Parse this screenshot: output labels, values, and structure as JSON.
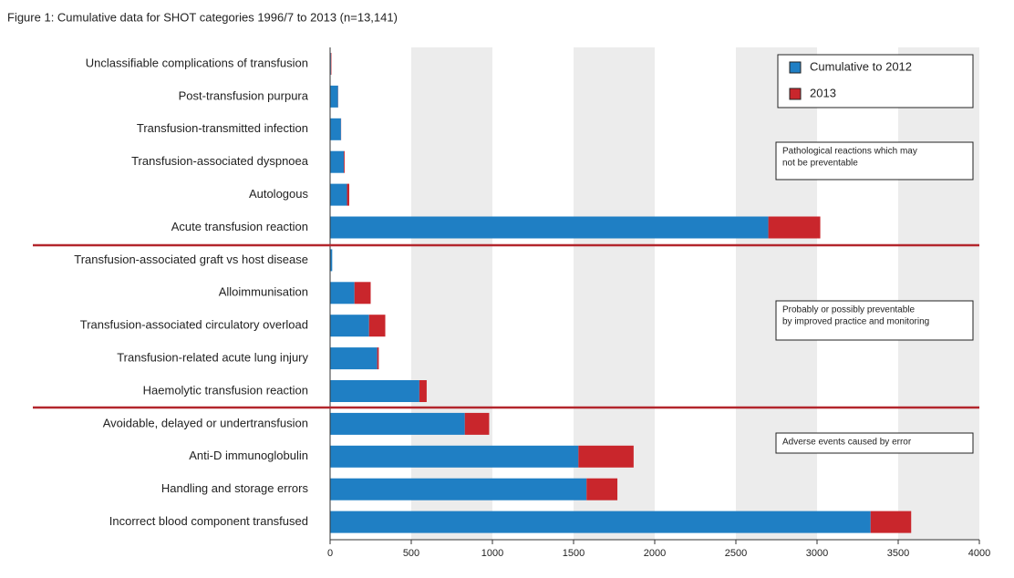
{
  "chart_data": {
    "type": "stacked_barh",
    "title": "Figure 1: Cumulative data for SHOT categories 1996/7 to 2013 (n=13,141)",
    "categories": [
      "Unclassifiable complications of transfusion",
      "Post-transfusion purpura",
      "Transfusion-transmitted infection",
      "Transfusion-associated dyspnoea",
      "Autologous",
      "Acute transfusion reaction",
      "Transfusion-associated graft vs host disease",
      "Alloimmunisation",
      "Transfusion-associated circulatory overload",
      "Transfusion-related acute lung injury",
      "Haemolytic transfusion reaction",
      "Avoidable, delayed or undertransfusion",
      "Anti-D immunoglobulin",
      "Handling and storage errors",
      "Incorrect blood component transfused"
    ],
    "series": [
      {
        "name": "Cumulative to 2012",
        "color": "#1f7fc4",
        "values": [
          5,
          49,
          67,
          85,
          104,
          2700,
          13,
          150,
          240,
          290,
          550,
          830,
          1530,
          1580,
          3330
        ]
      },
      {
        "name": "2013",
        "color": "#c9262c",
        "values": [
          3,
          1,
          1,
          5,
          14,
          320,
          0,
          100,
          100,
          10,
          45,
          150,
          340,
          190,
          250
        ]
      }
    ],
    "xlim": [
      0,
      4000
    ],
    "xticks": [
      0,
      500,
      1000,
      1500,
      2000,
      2500,
      3000,
      3500,
      4000
    ],
    "alternate_shading": true,
    "legend": "upper right",
    "annotations": [
      [
        "Pathological reactions which may",
        "not be preventable"
      ],
      [
        "Probably or possibly preventable",
        "by improved practice and monitoring"
      ],
      [
        "Adverse events caused by error"
      ]
    ]
  }
}
